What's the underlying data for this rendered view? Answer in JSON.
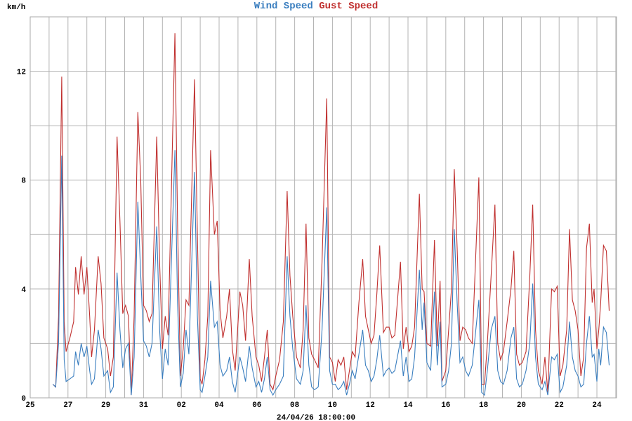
{
  "chart_data": {
    "type": "line",
    "title_parts": [
      {
        "text": "Wind Speed",
        "color": "#3a7ebf"
      },
      {
        "text": "Gust Speed",
        "color": "#c0302f"
      }
    ],
    "ylabel": "km/h",
    "xlabel": "24/04/26 18:00:00",
    "ylim": [
      0,
      14
    ],
    "xlim_days": [
      0,
      31.04
    ],
    "y_ticks": [
      0,
      4,
      8,
      12
    ],
    "y_grid_step": 2,
    "x_grid_step_days": 1,
    "x_ticks": [
      {
        "day": 0,
        "label": "25"
      },
      {
        "day": 2,
        "label": "27"
      },
      {
        "day": 4,
        "label": "29"
      },
      {
        "day": 6,
        "label": "31"
      },
      {
        "day": 8,
        "label": "02"
      },
      {
        "day": 10,
        "label": "04"
      },
      {
        "day": 12,
        "label": "06"
      },
      {
        "day": 14,
        "label": "08"
      },
      {
        "day": 16,
        "label": "10"
      },
      {
        "day": 18,
        "label": "12"
      },
      {
        "day": 20,
        "label": "14"
      },
      {
        "day": 22,
        "label": "16"
      },
      {
        "day": 24,
        "label": "18"
      },
      {
        "day": 26,
        "label": "20"
      },
      {
        "day": 28,
        "label": "22"
      },
      {
        "day": 30,
        "label": "24"
      }
    ],
    "grid": true,
    "series_columns": [
      "day",
      "wind_speed",
      "gust_speed"
    ],
    "points": [
      [
        1.2,
        0.5,
        0.5
      ],
      [
        1.35,
        0.4,
        0.4
      ],
      [
        1.5,
        2,
        3
      ],
      [
        1.67,
        8.9,
        11.8
      ],
      [
        1.8,
        1.4,
        2.8
      ],
      [
        1.9,
        0.6,
        1.7
      ],
      [
        2.1,
        0.7,
        2.2
      ],
      [
        2.3,
        0.8,
        2.8
      ],
      [
        2.4,
        1.7,
        4.8
      ],
      [
        2.55,
        1.2,
        3.8
      ],
      [
        2.7,
        2.0,
        5.2
      ],
      [
        2.85,
        1.5,
        3.8
      ],
      [
        3.0,
        1.9,
        4.8
      ],
      [
        3.15,
        1.0,
        3.0
      ],
      [
        3.25,
        0.5,
        1.5
      ],
      [
        3.4,
        0.7,
        2.5
      ],
      [
        3.6,
        2.5,
        5.2
      ],
      [
        3.75,
        1.8,
        4.2
      ],
      [
        3.9,
        0.8,
        2.2
      ],
      [
        4.1,
        1.0,
        1.8
      ],
      [
        4.25,
        0.2,
        0.8
      ],
      [
        4.4,
        0.4,
        1.5
      ],
      [
        4.6,
        4.6,
        9.6
      ],
      [
        4.75,
        2.5,
        6.5
      ],
      [
        4.9,
        1.1,
        3.1
      ],
      [
        5.05,
        1.8,
        3.4
      ],
      [
        5.2,
        2.0,
        3.0
      ],
      [
        5.35,
        0.1,
        0.1
      ],
      [
        5.5,
        1.5,
        3.0
      ],
      [
        5.7,
        7.2,
        10.5
      ],
      [
        5.85,
        4.5,
        8.0
      ],
      [
        6.0,
        2.1,
        3.4
      ],
      [
        6.15,
        1.9,
        3.2
      ],
      [
        6.3,
        1.5,
        2.8
      ],
      [
        6.45,
        2.0,
        3.1
      ],
      [
        6.7,
        6.3,
        9.6
      ],
      [
        6.85,
        2.5,
        5.0
      ],
      [
        7.0,
        0.7,
        1.8
      ],
      [
        7.15,
        1.8,
        3.0
      ],
      [
        7.3,
        1.2,
        2.3
      ],
      [
        7.66,
        9.1,
        13.4
      ],
      [
        7.8,
        3.5,
        6.5
      ],
      [
        7.95,
        0.4,
        0.8
      ],
      [
        8.1,
        0.9,
        1.8
      ],
      [
        8.25,
        2.5,
        3.6
      ],
      [
        8.4,
        1.6,
        3.4
      ],
      [
        8.7,
        8.3,
        11.7
      ],
      [
        8.85,
        3.0,
        6.0
      ],
      [
        9.0,
        0.3,
        0.7
      ],
      [
        9.1,
        0.2,
        0.5
      ],
      [
        9.25,
        0.8,
        1.4
      ],
      [
        9.4,
        1.5,
        3.0
      ],
      [
        9.55,
        4.3,
        9.1
      ],
      [
        9.75,
        2.6,
        6.0
      ],
      [
        9.9,
        2.8,
        6.5
      ],
      [
        10.05,
        1.2,
        3.2
      ],
      [
        10.2,
        0.8,
        2.2
      ],
      [
        10.4,
        1.0,
        3.0
      ],
      [
        10.55,
        1.5,
        4.0
      ],
      [
        10.7,
        0.6,
        1.8
      ],
      [
        10.85,
        0.2,
        1.0
      ],
      [
        11.1,
        1.5,
        3.9
      ],
      [
        11.25,
        1.1,
        3.4
      ],
      [
        11.4,
        0.6,
        2.1
      ],
      [
        11.6,
        1.9,
        5.1
      ],
      [
        11.75,
        1.1,
        3.0
      ],
      [
        11.95,
        0.4,
        1.5
      ],
      [
        12.1,
        0.6,
        1.2
      ],
      [
        12.25,
        0.2,
        0.6
      ],
      [
        12.4,
        0.7,
        1.5
      ],
      [
        12.55,
        1.5,
        2.5
      ],
      [
        12.7,
        0.3,
        0.5
      ],
      [
        12.85,
        0.1,
        0.3
      ],
      [
        13.0,
        0.3,
        0.8
      ],
      [
        13.2,
        0.5,
        1.4
      ],
      [
        13.4,
        0.8,
        2.8
      ],
      [
        13.6,
        5.2,
        7.6
      ],
      [
        13.75,
        3.0,
        4.5
      ],
      [
        13.9,
        1.8,
        3.0
      ],
      [
        14.1,
        0.7,
        1.5
      ],
      [
        14.3,
        0.5,
        1.1
      ],
      [
        14.45,
        1.0,
        2.5
      ],
      [
        14.6,
        3.4,
        6.4
      ],
      [
        14.75,
        1.2,
        2.2
      ],
      [
        14.9,
        0.4,
        1.6
      ],
      [
        15.05,
        0.3,
        1.4
      ],
      [
        15.25,
        0.4,
        1.1
      ],
      [
        15.45,
        2.5,
        5.0
      ],
      [
        15.7,
        7.0,
        11.0
      ],
      [
        15.85,
        1.0,
        1.5
      ],
      [
        16.0,
        0.5,
        1.3
      ],
      [
        16.15,
        0.5,
        0.6
      ],
      [
        16.3,
        0.3,
        1.4
      ],
      [
        16.45,
        0.4,
        1.2
      ],
      [
        16.6,
        0.6,
        1.5
      ],
      [
        16.75,
        0.1,
        0.3
      ],
      [
        16.9,
        0.5,
        1.0
      ],
      [
        17.05,
        1.0,
        1.7
      ],
      [
        17.2,
        0.7,
        1.5
      ],
      [
        17.4,
        1.6,
        3.5
      ],
      [
        17.6,
        2.5,
        5.1
      ],
      [
        17.75,
        1.2,
        3.0
      ],
      [
        17.9,
        1.0,
        2.5
      ],
      [
        18.05,
        0.6,
        2.0
      ],
      [
        18.2,
        0.8,
        2.3
      ],
      [
        18.35,
        1.4,
        3.8
      ],
      [
        18.5,
        2.3,
        5.6
      ],
      [
        18.7,
        0.8,
        2.4
      ],
      [
        18.85,
        1.0,
        2.6
      ],
      [
        19.0,
        1.1,
        2.6
      ],
      [
        19.15,
        0.9,
        2.2
      ],
      [
        19.3,
        1.0,
        2.3
      ],
      [
        19.6,
        2.1,
        5.0
      ],
      [
        19.75,
        0.8,
        1.8
      ],
      [
        19.9,
        1.5,
        2.6
      ],
      [
        20.05,
        0.6,
        1.7
      ],
      [
        20.2,
        0.7,
        1.9
      ],
      [
        20.35,
        1.5,
        2.6
      ],
      [
        20.6,
        4.7,
        7.5
      ],
      [
        20.75,
        2.5,
        4.0
      ],
      [
        20.85,
        3.5,
        3.9
      ],
      [
        21.0,
        1.3,
        2.0
      ],
      [
        21.2,
        1.0,
        1.9
      ],
      [
        21.4,
        3.9,
        5.8
      ],
      [
        21.55,
        1.2,
        1.9
      ],
      [
        21.7,
        2.8,
        4.3
      ],
      [
        21.8,
        0.4,
        0.6
      ],
      [
        22.0,
        0.5,
        1.0
      ],
      [
        22.15,
        1.0,
        2.5
      ],
      [
        22.3,
        2.0,
        4.0
      ],
      [
        22.45,
        6.2,
        8.4
      ],
      [
        22.6,
        3.5,
        5.5
      ],
      [
        22.75,
        1.3,
        2.1
      ],
      [
        22.9,
        1.5,
        2.6
      ],
      [
        23.05,
        1.0,
        2.5
      ],
      [
        23.2,
        0.8,
        2.2
      ],
      [
        23.4,
        1.2,
        2.0
      ],
      [
        23.75,
        3.6,
        8.1
      ],
      [
        23.9,
        0.2,
        0.5
      ],
      [
        24.05,
        0.1,
        0.5
      ],
      [
        24.2,
        1.0,
        2.0
      ],
      [
        24.4,
        2.5,
        4.5
      ],
      [
        24.6,
        3.0,
        7.1
      ],
      [
        24.75,
        1.0,
        2.0
      ],
      [
        24.9,
        0.6,
        1.4
      ],
      [
        25.05,
        0.5,
        1.7
      ],
      [
        25.25,
        1.0,
        2.8
      ],
      [
        25.45,
        2.2,
        4.0
      ],
      [
        25.6,
        2.6,
        5.4
      ],
      [
        25.75,
        0.7,
        1.6
      ],
      [
        25.9,
        0.4,
        1.2
      ],
      [
        26.05,
        0.5,
        1.3
      ],
      [
        26.25,
        1.0,
        1.7
      ],
      [
        26.45,
        2.0,
        4.5
      ],
      [
        26.6,
        4.2,
        7.1
      ],
      [
        26.75,
        1.5,
        2.5
      ],
      [
        26.9,
        0.5,
        1.0
      ],
      [
        27.1,
        0.3,
        0.5
      ],
      [
        27.25,
        0.6,
        1.5
      ],
      [
        27.4,
        0.1,
        0.2
      ],
      [
        27.6,
        1.5,
        4.0
      ],
      [
        27.75,
        1.4,
        3.9
      ],
      [
        27.9,
        1.6,
        4.1
      ],
      [
        28.05,
        0.2,
        0.8
      ],
      [
        28.2,
        0.4,
        1.2
      ],
      [
        28.4,
        1.2,
        2.5
      ],
      [
        28.55,
        2.8,
        6.2
      ],
      [
        28.7,
        1.5,
        3.6
      ],
      [
        28.85,
        1.0,
        3.2
      ],
      [
        29.0,
        0.8,
        2.5
      ],
      [
        29.15,
        0.4,
        0.8
      ],
      [
        29.3,
        0.5,
        1.5
      ],
      [
        29.45,
        2.0,
        5.5
      ],
      [
        29.6,
        3.0,
        6.4
      ],
      [
        29.75,
        1.5,
        3.5
      ],
      [
        29.85,
        1.6,
        4.0
      ],
      [
        30.0,
        0.6,
        1.8
      ],
      [
        30.1,
        1.8,
        2.5
      ],
      [
        30.2,
        1.2,
        3.5
      ],
      [
        30.35,
        2.6,
        5.6
      ],
      [
        30.5,
        2.4,
        5.4
      ],
      [
        30.65,
        1.2,
        3.2
      ]
    ]
  }
}
